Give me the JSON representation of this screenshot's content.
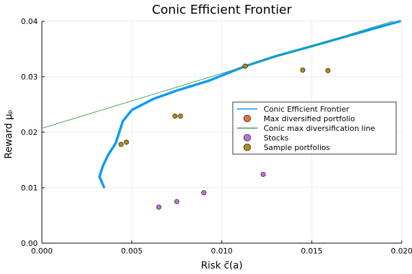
{
  "chart_data": {
    "type": "scatter",
    "title": "Conic Efficient Frontier",
    "xlabel": "Risk c̃(a)",
    "ylabel": "Reward μₚ",
    "xlim": [
      0.0,
      0.02
    ],
    "ylim": [
      0.0,
      0.04
    ],
    "xticks": [
      0.0,
      0.005,
      0.01,
      0.015,
      0.02
    ],
    "yticks": [
      0.0,
      0.01,
      0.02,
      0.03,
      0.04
    ],
    "xtick_labels": [
      "0.000",
      "0.005",
      "0.010",
      "0.015",
      "0.020"
    ],
    "ytick_labels": [
      "0.00",
      "0.01",
      "0.02",
      "0.03",
      "0.04"
    ],
    "grid": true,
    "legend_position": "right",
    "series": [
      {
        "name": "Conic Efficient Frontier",
        "kind": "line",
        "color": "#009AFA",
        "x": [
          0.00345,
          0.0032,
          0.0034,
          0.0037,
          0.0041,
          0.0045,
          0.005,
          0.0062,
          0.0075,
          0.0093,
          0.0113,
          0.013,
          0.015,
          0.0175,
          0.0199
        ],
        "y": [
          0.0101,
          0.012,
          0.014,
          0.016,
          0.018,
          0.022,
          0.024,
          0.026,
          0.0275,
          0.0293,
          0.0319,
          0.0337,
          0.0355,
          0.0378,
          0.04
        ]
      },
      {
        "name": "Max diversified portfolio",
        "kind": "point",
        "color": "#E26F46",
        "x": [
          0.0113
        ],
        "y": [
          0.0319
        ]
      },
      {
        "name": "Conic max diversification line",
        "kind": "line",
        "color": "#3EA44E",
        "x": [
          0.0,
          0.0195
        ],
        "y": [
          0.0207,
          0.04
        ]
      },
      {
        "name": "Stocks",
        "kind": "point",
        "color": "#C271D2",
        "x": [
          0.0065,
          0.0075,
          0.009,
          0.0123
        ],
        "y": [
          0.0065,
          0.0075,
          0.0091,
          0.0124
        ]
      },
      {
        "name": "Sample portfolios",
        "kind": "point",
        "color": "#AC8D18",
        "x": [
          0.0044,
          0.0047,
          0.0074,
          0.0077,
          0.0113,
          0.0145,
          0.0159
        ],
        "y": [
          0.0178,
          0.0182,
          0.0229,
          0.0229,
          0.0319,
          0.0312,
          0.0311
        ]
      }
    ]
  }
}
